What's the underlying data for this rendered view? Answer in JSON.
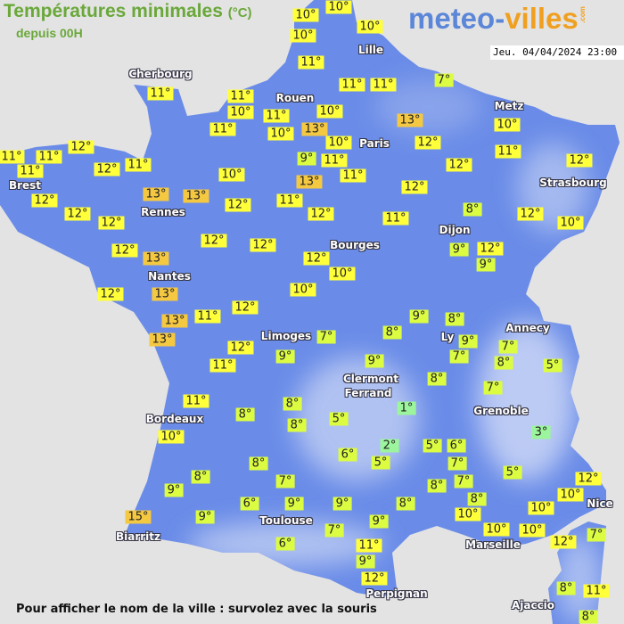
{
  "header": {
    "title": "Températures minimales",
    "unit": "(°C)",
    "subtitle": "depuis 00H",
    "logo": "meteo-villes.com",
    "logo_part1": "meteo-",
    "logo_part2": "villes",
    "logo_part3": ".com",
    "datetime": "Jeu. 04/04/2024 23:00"
  },
  "colors": {
    "land": "#6a8ce8",
    "sea": "#e3e3e3",
    "temp_13_plus": "#f5c842",
    "temp_10_12": "#ffff3a",
    "temp_5_9": "#dcfc42",
    "temp_0_4": "#9cf59c"
  },
  "cities": [
    "Lille",
    "Cherbourg",
    "Rouen",
    "Paris",
    "Metz",
    "Brest",
    "Rennes",
    "Strasbourg",
    "Dijon",
    "Bourges",
    "Nantes",
    "Limoges",
    "Annecy",
    "Ly",
    "Clermont",
    "Ferrand",
    "Grenoble",
    "Bordeaux",
    "Nice",
    "Toulouse",
    "Biarritz",
    "Marseille",
    "Perpignan",
    "Ajaccio"
  ],
  "temperatures": [
    "10°",
    "10°",
    "10°",
    "10°",
    "11°",
    "7°",
    "11°",
    "11°",
    "11°",
    "11°",
    "10°",
    "11°",
    "11°",
    "10°",
    "13°",
    "10°",
    "13°",
    "10°",
    "10°",
    "12°",
    "12°",
    "11°",
    "9°",
    "11°",
    "11°",
    "12°",
    "12°",
    "11°",
    "11°",
    "11°",
    "12°",
    "11°",
    "10°",
    "13°",
    "13°",
    "13°",
    "12°",
    "12°",
    "12°",
    "11°",
    "12°",
    "12°",
    "12°",
    "11°",
    "8°",
    "12°",
    "10°",
    "12°",
    "12°",
    "12°",
    "13°",
    "12°",
    "10°",
    "9°",
    "12°",
    "9°",
    "12°",
    "13°",
    "10°",
    "12°",
    "13°",
    "11°",
    "13°",
    "9°",
    "8°",
    "7°",
    "8°",
    "9°",
    "7°",
    "12°",
    "9°",
    "9°",
    "7°",
    "8°",
    "5°",
    "11°",
    "8°",
    "7°",
    "11°",
    "8°",
    "1°",
    "8°",
    "8°",
    "5°",
    "10°",
    "2°",
    "5°",
    "6°",
    "3°",
    "6°",
    "5°",
    "7°",
    "8°",
    "8°",
    "5°",
    "7°",
    "8°",
    "7°",
    "12°",
    "9°",
    "10°",
    "6°",
    "9°",
    "9°",
    "8°",
    "8°",
    "10°",
    "10°",
    "10°",
    "15°",
    "9°",
    "10°",
    "7°",
    "9°",
    "12°",
    "7°",
    "6°",
    "11°",
    "9°",
    "12°",
    "8°",
    "11°",
    "8°"
  ],
  "footer": "Pour afficher le nom de la ville : survolez avec la souris"
}
